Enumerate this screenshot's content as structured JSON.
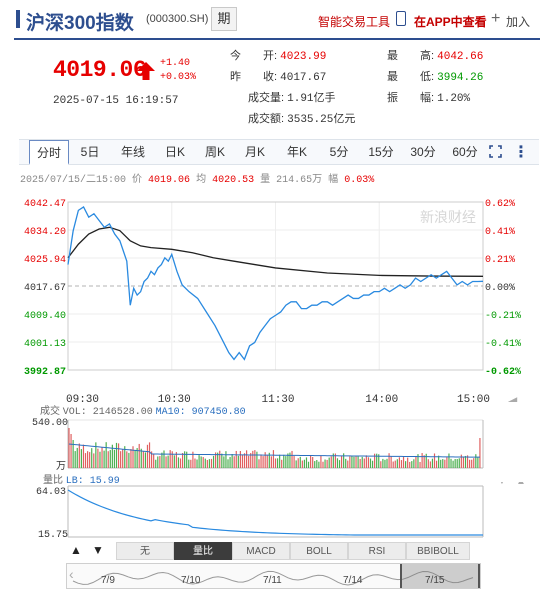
{
  "header": {
    "title": "沪深300指数",
    "code": "(000300.SH)",
    "futures_button": "期",
    "smart_tool": "智能交易工具",
    "app_view": "在APP中查看",
    "add_plus": "+",
    "add_label": "加入"
  },
  "quote": {
    "price": "4019.06",
    "change": "+1.40",
    "change_pct": "+0.03%",
    "timestamp": "2025-07-15 16:19:57"
  },
  "stats": {
    "open_label": "今　　开:",
    "open": "4023.99",
    "prev_label": "昨　　收:",
    "prev": "4017.67",
    "volume_label": "成交量:",
    "volume": "1.91亿手",
    "amount_label": "成交额:",
    "amount": "3535.25亿元",
    "high_label": "最　　高:",
    "high": "4042.66",
    "low_label": "最　　低:",
    "low": "3994.26",
    "amp_label": "振　　幅:",
    "amp": "1.20%"
  },
  "tabs": [
    "分时",
    "5日",
    "年线",
    "日K",
    "周K",
    "月K",
    "年K",
    "5分",
    "15分",
    "30分",
    "60分"
  ],
  "active_tab": "分时",
  "info_line": {
    "prefix": "2025/07/15/二15:00 价",
    "price": "4019.06",
    "avg_label": "均",
    "avg": "4020.53",
    "vol_label": "量",
    "vol": "214.65万",
    "amp_label": "幅",
    "amp": "0.03%"
  },
  "colors": {
    "up": "#e60000",
    "down": "#009900",
    "accent": "#2d4e8f",
    "price_line": "#2a8ae0",
    "avg_line": "#222222",
    "ma10": "#2a6fbf"
  },
  "watermark": "新浪财经",
  "volume_header": {
    "label": "成交",
    "vol": "VOL: 2146528.00",
    "ma10": "MA10: 907450.80",
    "ytop": "540.00",
    "ybottom": "万"
  },
  "lb_header": {
    "label": "量比",
    "lb": "LB: 15.99",
    "ytop": "64.03",
    "ybottom": "15.75"
  },
  "indicators": {
    "up_arrow": "▲",
    "down_arrow": "▼",
    "buttons": [
      "无",
      "量比",
      "MACD",
      "BOLL",
      "RSI",
      "BBIBOLL"
    ],
    "active": "量比"
  },
  "navigator": {
    "days": [
      "7/9",
      "7/10",
      "7/11",
      "7/14",
      "7/15"
    ]
  },
  "chart_data": {
    "type": "line",
    "title": "",
    "xlabel": "",
    "ylabel": "",
    "x_ticks": [
      "09:30",
      "10:30",
      "11:30",
      "14:00",
      "15:00"
    ],
    "y_ticks_left": [
      "4042.47",
      "4034.20",
      "4025.94",
      "4017.67",
      "4009.40",
      "4001.13",
      "3992.87"
    ],
    "y_ticks_right": [
      "0.62%",
      "0.41%",
      "0.21%",
      "0.00%",
      "-0.21%",
      "-0.41%",
      "-0.62%"
    ],
    "ylim": [
      3992.87,
      4042.47
    ],
    "reference": 4017.67,
    "series": [
      {
        "x": [
          0,
          3,
          6,
          9,
          12,
          15,
          18,
          21,
          24,
          27,
          30,
          32,
          34,
          36,
          38,
          40,
          42,
          44,
          46,
          48,
          50,
          52,
          54,
          56,
          58,
          60,
          63,
          66,
          70,
          75,
          80,
          85,
          90,
          93,
          96,
          99,
          102,
          105,
          108,
          111,
          114,
          117,
          120,
          123,
          126,
          129,
          132,
          135,
          138,
          141,
          144,
          147,
          150,
          153,
          156,
          159,
          162,
          165,
          168,
          171,
          174,
          177,
          180,
          183,
          186,
          189,
          192,
          195,
          198,
          201,
          204,
          207,
          210,
          213,
          216,
          219,
          222,
          225,
          228,
          231,
          234,
          237,
          240
        ],
        "values": [
          4024,
          4034,
          4040,
          4041,
          4038,
          4039,
          4037,
          4035,
          4036,
          4033,
          4031,
          4028,
          4025,
          4012,
          4017,
          4015,
          4016,
          4019,
          4020,
          4022,
          4021,
          4023,
          4024,
          4026,
          4025,
          4027,
          4022,
          4018,
          4016,
          4014,
          4010,
          4006,
          4001,
          3998,
          3996,
          3998,
          3996,
          4000,
          4001,
          4004,
          4006,
          4008,
          4009,
          4010,
          4012,
          4013,
          4013,
          4011,
          4011,
          4012,
          4012,
          4013,
          4013,
          4012,
          4013,
          4014,
          4015,
          4014,
          4014,
          4015,
          4015,
          4016,
          4016,
          4017,
          4016,
          4017,
          4018,
          4017,
          4018,
          4020,
          4019,
          4020,
          4021,
          4020,
          4021,
          4022,
          4020,
          4018,
          4019,
          4018,
          4019,
          4019,
          4019.06
        ]
      },
      {
        "x": [
          0,
          6,
          12,
          18,
          24,
          30,
          36,
          42,
          48,
          60,
          72,
          84,
          96,
          108,
          120,
          150,
          180,
          210,
          240
        ],
        "values": [
          4026,
          4030,
          4033,
          4034.5,
          4035,
          4034,
          4031,
          4029.5,
          4029,
          4028.5,
          4027.5,
          4026,
          4025,
          4024,
          4023,
          4021.5,
          4020.8,
          4020.6,
          4020.53
        ]
      }
    ]
  }
}
